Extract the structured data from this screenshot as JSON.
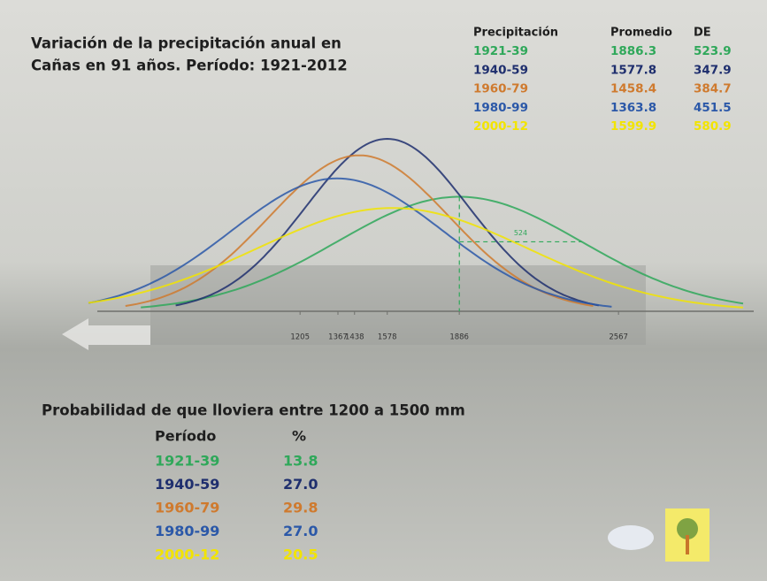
{
  "title": [
    "Variación de la precipitación anual en",
    "Cañas en 91 años. Período: 1921-2012"
  ],
  "stats": {
    "headers": [
      "Precipitación",
      "Promedio",
      "DE"
    ],
    "rows": [
      {
        "period": "1921-39",
        "mean": "1886.3",
        "sd": "523.9",
        "color": "#2fa85a"
      },
      {
        "period": "1940-59",
        "mean": "1577.8",
        "sd": "347.9",
        "color": "#1f2f6e"
      },
      {
        "period": "1960-79",
        "mean": "1458.4",
        "sd": "384.7",
        "color": "#cf7a2e"
      },
      {
        "period": "1980-99",
        "mean": "1363.8",
        "sd": "451.5",
        "color": "#2b58a8"
      },
      {
        "period": "2000-12",
        "mean": "1599.9",
        "sd": "580.9",
        "color": "#f2e400"
      }
    ]
  },
  "axis": {
    "xlim": [
      300,
      3100
    ],
    "xticks": [
      1205,
      1367,
      1438,
      1578,
      1886,
      2567
    ]
  },
  "annotation": "524",
  "probability": {
    "title": "Probabilidad de que lloviera entre 1200 a 1500 mm",
    "headers": [
      "Período",
      "%"
    ],
    "rows": [
      {
        "period": "1921-39",
        "value": "13.8",
        "color": "#2fa85a"
      },
      {
        "period": "1940-59",
        "value": "27.0",
        "color": "#1f2f6e"
      },
      {
        "period": "1960-79",
        "value": "29.8",
        "color": "#cf7a2e"
      },
      {
        "period": "1980-99",
        "value": "27.0",
        "color": "#2b58a8"
      },
      {
        "period": "2000-12",
        "value": "20.5",
        "color": "#f2e400"
      }
    ]
  }
}
